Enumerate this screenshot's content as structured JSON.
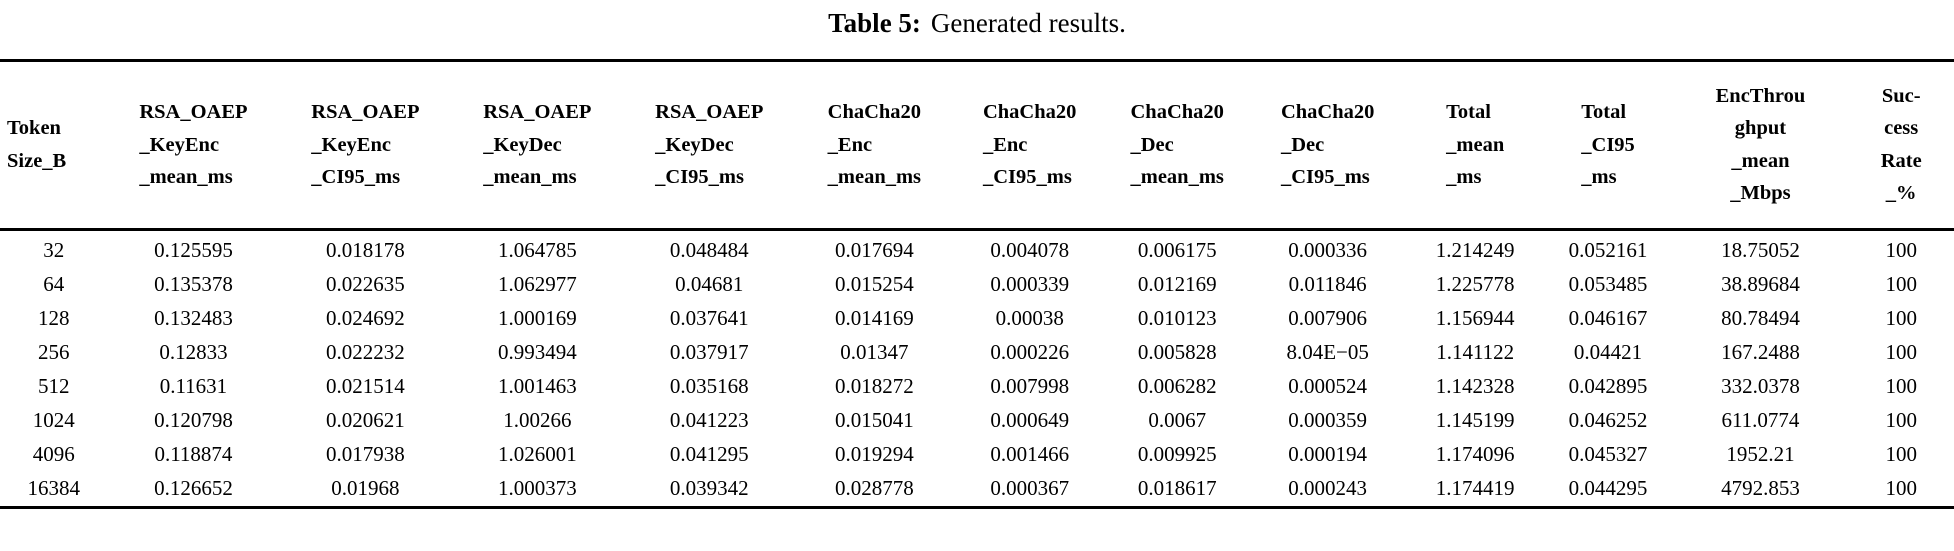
{
  "caption": {
    "label": "Table 5:",
    "text": "Generated results."
  },
  "table": {
    "columns": [
      {
        "id": "token-size-b",
        "label_lines": [
          "Token",
          "Size_B"
        ]
      },
      {
        "id": "rsa-oaep-keyenc-mean-ms",
        "label_lines": [
          "RSA_OAEP",
          "_KeyEnc",
          "_mean_ms"
        ]
      },
      {
        "id": "rsa-oaep-keyenc-ci95-ms",
        "label_lines": [
          "RSA_OAEP",
          "_KeyEnc",
          "_CI95_ms"
        ]
      },
      {
        "id": "rsa-oaep-keydec-mean-ms",
        "label_lines": [
          "RSA_OAEP",
          "_KeyDec",
          "_mean_ms"
        ]
      },
      {
        "id": "rsa-oaep-keydec-ci95-ms",
        "label_lines": [
          "RSA_OAEP",
          "_KeyDec",
          "_CI95_ms"
        ]
      },
      {
        "id": "chacha20-enc-mean-ms",
        "label_lines": [
          "ChaCha20",
          "_Enc",
          "_mean_ms"
        ]
      },
      {
        "id": "chacha20-enc-ci95-ms",
        "label_lines": [
          "ChaCha20",
          "_Enc",
          "_CI95_ms"
        ]
      },
      {
        "id": "chacha20-dec-mean-ms",
        "label_lines": [
          "ChaCha20",
          "_Dec",
          "_mean_ms"
        ]
      },
      {
        "id": "chacha20-dec-ci95-ms",
        "label_lines": [
          "ChaCha20",
          "_Dec",
          "_CI95_ms"
        ]
      },
      {
        "id": "total-mean-ms",
        "label_lines": [
          "Total",
          "_mean",
          "_ms"
        ]
      },
      {
        "id": "total-ci95-ms",
        "label_lines": [
          "Total",
          "_CI95",
          "_ms"
        ]
      },
      {
        "id": "encthroughput-mean-mbps",
        "label_lines": [
          "EncThrou",
          "ghput",
          "_mean",
          "_Mbps"
        ]
      },
      {
        "id": "success-rate-pct",
        "label_lines": [
          "Suc-",
          "cess",
          "Rate",
          "_%"
        ]
      }
    ],
    "rows": [
      [
        "32",
        "0.125595",
        "0.018178",
        "1.064785",
        "0.048484",
        "0.017694",
        "0.004078",
        "0.006175",
        "0.000336",
        "1.214249",
        "0.052161",
        "18.75052",
        "100"
      ],
      [
        "64",
        "0.135378",
        "0.022635",
        "1.062977",
        "0.04681",
        "0.015254",
        "0.000339",
        "0.012169",
        "0.011846",
        "1.225778",
        "0.053485",
        "38.89684",
        "100"
      ],
      [
        "128",
        "0.132483",
        "0.024692",
        "1.000169",
        "0.037641",
        "0.014169",
        "0.00038",
        "0.010123",
        "0.007906",
        "1.156944",
        "0.046167",
        "80.78494",
        "100"
      ],
      [
        "256",
        "0.12833",
        "0.022232",
        "0.993494",
        "0.037917",
        "0.01347",
        "0.000226",
        "0.005828",
        "8.04E−05",
        "1.141122",
        "0.04421",
        "167.2488",
        "100"
      ],
      [
        "512",
        "0.11631",
        "0.021514",
        "1.001463",
        "0.035168",
        "0.018272",
        "0.007998",
        "0.006282",
        "0.000524",
        "1.142328",
        "0.042895",
        "332.0378",
        "100"
      ],
      [
        "1024",
        "0.120798",
        "0.020621",
        "1.00266",
        "0.041223",
        "0.015041",
        "0.000649",
        "0.0067",
        "0.000359",
        "1.145199",
        "0.046252",
        "611.0774",
        "100"
      ],
      [
        "4096",
        "0.118874",
        "0.017938",
        "1.026001",
        "0.041295",
        "0.019294",
        "0.001466",
        "0.009925",
        "0.000194",
        "1.174096",
        "0.045327",
        "1952.21",
        "100"
      ],
      [
        "16384",
        "0.126652",
        "0.01968",
        "1.000373",
        "0.039342",
        "0.028778",
        "0.000367",
        "0.018617",
        "0.000243",
        "1.174419",
        "0.044295",
        "4792.853",
        "100"
      ]
    ]
  }
}
